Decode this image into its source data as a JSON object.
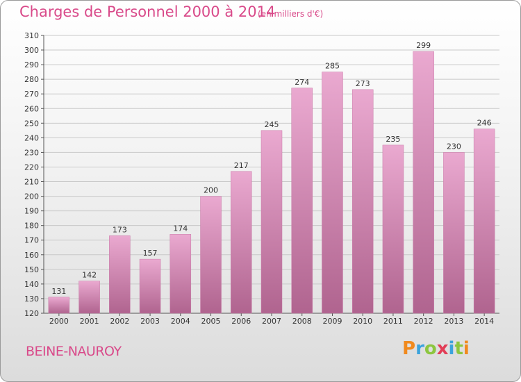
{
  "header": {
    "title": "Charges de Personnel 2000 à 2014",
    "subtitle": "(en milliers d'€)"
  },
  "footer": {
    "commune": "BEINE-NAUROY",
    "logo_text": "Proxiti"
  },
  "colors": {
    "accent": "#d94a8a",
    "bar_top": "#e9a8cf",
    "bar_bottom": "#b0648f",
    "gridline": "#c8c8c8"
  },
  "chart_data": {
    "type": "bar",
    "categories": [
      "2000",
      "2001",
      "2002",
      "2003",
      "2004",
      "2005",
      "2006",
      "2007",
      "2008",
      "2009",
      "2010",
      "2011",
      "2012",
      "2013",
      "2014"
    ],
    "values": [
      131,
      142,
      173,
      157,
      174,
      200,
      217,
      245,
      274,
      285,
      273,
      235,
      299,
      230,
      246
    ],
    "title": "Charges de Personnel 2000 à 2014",
    "subtitle": "(en milliers d'€)",
    "ylim": [
      120,
      310
    ],
    "yticks": [
      120,
      130,
      140,
      150,
      160,
      170,
      180,
      190,
      200,
      210,
      220,
      230,
      240,
      250,
      260,
      270,
      280,
      290,
      300,
      310
    ],
    "grid": "horizontal",
    "data_labels": true
  }
}
